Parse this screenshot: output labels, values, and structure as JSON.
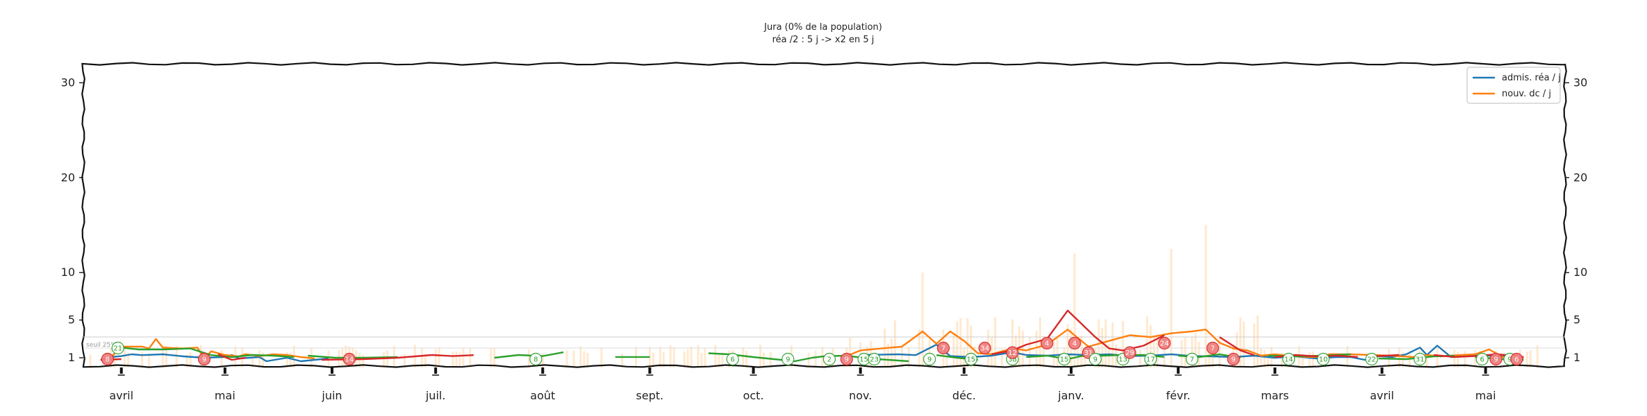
{
  "chart_data": {
    "type": "line",
    "title": "Jura (0% de la population)",
    "subtitle": "réa /2 : 5 j -> x2 en 5 j",
    "y_ticks": [
      "1",
      "5",
      "10",
      "20",
      "30"
    ],
    "y_tick_values": [
      1,
      5,
      10,
      20,
      30
    ],
    "ylim": [
      0,
      32
    ],
    "months": [
      "avril",
      "mai",
      "juin",
      "juil.",
      "août",
      "sept.",
      "oct.",
      "nov.",
      "déc.",
      "janv.",
      "févr.",
      "mars",
      "avril",
      "mai"
    ],
    "month_index": [
      0,
      30,
      61,
      91,
      122,
      153,
      183,
      214,
      244,
      275,
      306,
      334,
      365,
      395
    ],
    "x_range_days": [
      -11,
      418
    ],
    "note_label": "seuil 25%",
    "legend_position": "top-right",
    "grid": false,
    "series": [
      {
        "name": "admis. réa / j",
        "color": "#1f77b4",
        "points": [
          [
            -6,
            0.2
          ],
          [
            -3,
            0.6
          ],
          [
            0,
            1.2
          ],
          [
            3,
            1.0
          ],
          [
            6,
            1.3
          ],
          [
            12,
            1.0
          ],
          [
            18,
            0.7
          ],
          [
            24,
            0.5
          ],
          [
            30,
            1.1
          ],
          [
            32,
            0.9
          ],
          [
            34,
            0.4
          ],
          [
            40,
            0.6
          ],
          [
            42,
            0.0
          ],
          [
            48,
            0.5
          ],
          [
            52,
            0.0
          ],
          [
            60,
            0.4
          ],
          [
            95,
            null
          ],
          [
            214,
            0.9
          ],
          [
            225,
            1.0
          ],
          [
            230,
            1.3
          ],
          [
            236,
            2.4
          ],
          [
            240,
            1.2
          ],
          [
            246,
            0.6
          ],
          [
            252,
            0.8
          ],
          [
            258,
            1.6
          ],
          [
            262,
            0.9
          ],
          [
            268,
            0.8
          ],
          [
            274,
            1.0
          ],
          [
            280,
            1.3
          ],
          [
            286,
            1.0
          ],
          [
            292,
            1.2
          ],
          [
            298,
            0.8
          ],
          [
            304,
            1.0
          ],
          [
            310,
            1.2
          ],
          [
            316,
            0.7
          ],
          [
            322,
            0.6
          ],
          [
            328,
            0.8
          ],
          [
            334,
            0.5
          ],
          [
            340,
            0.7
          ],
          [
            346,
            0.4
          ],
          [
            352,
            0.6
          ],
          [
            356,
            0.6
          ],
          [
            360,
            0.2
          ],
          [
            364,
            1.2
          ],
          [
            368,
            0.6
          ],
          [
            372,
            1.0
          ],
          [
            376,
            2.1
          ],
          [
            378,
            0.9
          ],
          [
            381,
            2.3
          ],
          [
            385,
            0.6
          ],
          [
            392,
            0.8
          ],
          [
            398,
            0.8
          ],
          [
            404,
            0.6
          ],
          [
            406,
            0.5
          ]
        ]
      },
      {
        "name": "nouv. dc / j",
        "color": "#ff7f0e",
        "points": [
          [
            -3,
            0.6
          ],
          [
            0,
            2.2
          ],
          [
            6,
            2.2
          ],
          [
            8,
            2.0
          ],
          [
            10,
            3.0
          ],
          [
            12,
            2.1
          ],
          [
            18,
            2.0
          ],
          [
            22,
            2.1
          ],
          [
            24,
            0.4
          ],
          [
            26,
            1.7
          ],
          [
            30,
            0.9
          ],
          [
            34,
            0.7
          ],
          [
            36,
            1.4
          ],
          [
            40,
            1.2
          ],
          [
            44,
            1.0
          ],
          [
            48,
            0.9
          ],
          [
            52,
            0.6
          ],
          [
            56,
            0.4
          ],
          [
            200,
            null
          ],
          [
            210,
            1.2
          ],
          [
            214,
            1.8
          ],
          [
            220,
            2.0
          ],
          [
            226,
            2.2
          ],
          [
            232,
            3.8
          ],
          [
            236,
            2.5
          ],
          [
            240,
            3.8
          ],
          [
            244,
            2.8
          ],
          [
            248,
            1.5
          ],
          [
            252,
            1.4
          ],
          [
            258,
            2.0
          ],
          [
            262,
            1.8
          ],
          [
            268,
            2.4
          ],
          [
            274,
            4.0
          ],
          [
            280,
            2.2
          ],
          [
            286,
            2.8
          ],
          [
            292,
            3.4
          ],
          [
            298,
            3.2
          ],
          [
            304,
            3.6
          ],
          [
            310,
            3.8
          ],
          [
            314,
            4.0
          ],
          [
            318,
            2.6
          ],
          [
            322,
            2.0
          ],
          [
            326,
            1.8
          ],
          [
            330,
            0.8
          ],
          [
            334,
            1.0
          ],
          [
            340,
            0.7
          ],
          [
            346,
            0.6
          ],
          [
            350,
            1.4
          ],
          [
            356,
            1.0
          ],
          [
            362,
            0.9
          ],
          [
            368,
            0.8
          ],
          [
            374,
            1.1
          ],
          [
            378,
            0.9
          ],
          [
            382,
            0.7
          ],
          [
            388,
            0.9
          ],
          [
            392,
            1.0
          ],
          [
            396,
            1.9
          ],
          [
            400,
            0.6
          ],
          [
            406,
            0.5
          ]
        ]
      },
      {
        "name": "",
        "color": "#2ca02c",
        "segment": "decreasing",
        "points": [
          [
            0,
            2.1
          ],
          [
            5,
            1.9
          ],
          [
            12,
            1.9
          ],
          [
            20,
            2.0
          ],
          [
            26,
            1.3
          ],
          [
            32,
            0.6
          ],
          [
            38,
            0.9
          ],
          [
            44,
            0.8
          ],
          [
            50,
            0.6
          ],
          [
            54,
            null
          ],
          [
            54,
            0.8
          ],
          [
            62,
            0.5
          ],
          [
            70,
            0.5
          ],
          [
            80,
            0.6
          ],
          [
            94,
            null
          ],
          [
            108,
            0.5
          ],
          [
            115,
            0.9
          ],
          [
            122,
            1.2
          ],
          [
            128,
            1.6
          ],
          [
            134,
            null
          ],
          [
            143,
            1.1
          ],
          [
            153,
            1.1
          ],
          [
            160,
            null
          ],
          [
            170,
            1.5
          ],
          [
            176,
            1.0
          ],
          [
            183,
            0.6
          ],
          [
            189,
            0.3
          ],
          [
            195,
            0.0
          ],
          [
            200,
            0.5
          ],
          [
            204,
            1.2
          ],
          [
            210,
            0.8
          ],
          [
            216,
            0.4
          ],
          [
            222,
            0.2
          ],
          [
            228,
            0.0
          ],
          [
            234,
            null
          ],
          [
            236,
            1.3
          ],
          [
            242,
            0.5
          ],
          [
            248,
            0.2
          ],
          [
            252,
            null
          ],
          [
            262,
            0.6
          ],
          [
            268,
            0.8
          ],
          [
            274,
            0.3
          ],
          [
            278,
            1.2
          ],
          [
            284,
            0.8
          ],
          [
            290,
            0.9
          ],
          [
            296,
            0.9
          ],
          [
            302,
            1.1
          ],
          [
            306,
            null
          ],
          [
            306,
            0.8
          ],
          [
            312,
            0.6
          ],
          [
            318,
            1.0
          ],
          [
            324,
            0.5
          ],
          [
            332,
            null
          ],
          [
            332,
            0.8
          ],
          [
            340,
            0.7
          ],
          [
            348,
            0.8
          ],
          [
            356,
            1.0
          ],
          [
            364,
            null
          ],
          [
            364,
            0.4
          ],
          [
            372,
            0.3
          ],
          [
            380,
            0.7
          ],
          [
            386,
            0.8
          ],
          [
            392,
            null
          ],
          [
            392,
            0.6
          ],
          [
            400,
            0.3
          ],
          [
            406,
            0.2
          ]
        ]
      },
      {
        "name": "",
        "color": "#d62728",
        "segment": "increasing",
        "points": [
          [
            -6,
            0.2
          ],
          [
            0,
            0.3
          ],
          [
            6,
            null
          ],
          [
            28,
            1.0
          ],
          [
            32,
            0.2
          ],
          [
            36,
            0.5
          ],
          [
            40,
            null
          ],
          [
            58,
            0.2
          ],
          [
            70,
            0.3
          ],
          [
            80,
            0.5
          ],
          [
            90,
            0.9
          ],
          [
            96,
            1.2
          ],
          [
            102,
            1.3
          ],
          [
            108,
            null
          ],
          [
            252,
            1.0
          ],
          [
            258,
            1.8
          ],
          [
            262,
            2.4
          ],
          [
            268,
            3.0
          ],
          [
            274,
            6.0
          ],
          [
            278,
            4.6
          ],
          [
            282,
            3.2
          ],
          [
            286,
            2.0
          ],
          [
            290,
            1.8
          ],
          [
            296,
            2.3
          ],
          [
            302,
            3.4
          ],
          [
            306,
            null
          ],
          [
            318,
            3.2
          ],
          [
            324,
            1.8
          ],
          [
            328,
            1.3
          ],
          [
            334,
            null
          ],
          [
            334,
            0.6
          ],
          [
            340,
            0.9
          ],
          [
            346,
            0.7
          ],
          [
            352,
            0.8
          ],
          [
            358,
            1.1
          ],
          [
            362,
            null
          ],
          [
            362,
            0.7
          ],
          [
            370,
            0.9
          ],
          [
            376,
            null
          ],
          [
            380,
            0.9
          ],
          [
            386,
            1.1
          ],
          [
            392,
            1.2
          ],
          [
            398,
            1.0
          ],
          [
            404,
            0.8
          ],
          [
            406,
            0.6
          ]
        ]
      }
    ],
    "annotations": [
      {
        "x": -4,
        "y": 0.0,
        "text": "8",
        "kind": "red"
      },
      {
        "x": -1,
        "y": 1.0,
        "text": "21",
        "kind": "green"
      },
      {
        "x": 24,
        "y": 0.0,
        "text": "9",
        "kind": "red"
      },
      {
        "x": 66,
        "y": 0.0,
        "text": "14",
        "kind": "red"
      },
      {
        "x": 120,
        "y": 0.0,
        "text": "8",
        "kind": "green"
      },
      {
        "x": 177,
        "y": 0.0,
        "text": "6",
        "kind": "green"
      },
      {
        "x": 193,
        "y": 0.0,
        "text": "9",
        "kind": "green"
      },
      {
        "x": 205,
        "y": 0.0,
        "text": "2",
        "kind": "green"
      },
      {
        "x": 210,
        "y": 0.0,
        "text": "9",
        "kind": "red"
      },
      {
        "x": 215,
        "y": 0.0,
        "text": "15",
        "kind": "green"
      },
      {
        "x": 218,
        "y": 0.0,
        "text": "23",
        "kind": "green"
      },
      {
        "x": 234,
        "y": 0.0,
        "text": "9",
        "kind": "green"
      },
      {
        "x": 238,
        "y": 1.0,
        "text": "7",
        "kind": "red"
      },
      {
        "x": 246,
        "y": 0.0,
        "text": "15",
        "kind": "green"
      },
      {
        "x": 250,
        "y": 1.0,
        "text": "34",
        "kind": "red"
      },
      {
        "x": 258,
        "y": 0.0,
        "text": "38",
        "kind": "green"
      },
      {
        "x": 258,
        "y": 2.0,
        "text": "12",
        "kind": "red"
      },
      {
        "x": 268,
        "y": 3.0,
        "text": "4",
        "kind": "red"
      },
      {
        "x": 273,
        "y": 0.0,
        "text": "15",
        "kind": "green"
      },
      {
        "x": 276,
        "y": 3.0,
        "text": "4",
        "kind": "red"
      },
      {
        "x": 280,
        "y": 2.0,
        "text": "31",
        "kind": "red"
      },
      {
        "x": 282,
        "y": 0.0,
        "text": "9",
        "kind": "green"
      },
      {
        "x": 290,
        "y": 0.0,
        "text": "13",
        "kind": "green"
      },
      {
        "x": 292,
        "y": 2.0,
        "text": "29",
        "kind": "red"
      },
      {
        "x": 298,
        "y": 0.0,
        "text": "17",
        "kind": "green"
      },
      {
        "x": 302,
        "y": 3.0,
        "text": "24",
        "kind": "red"
      },
      {
        "x": 310,
        "y": 0.0,
        "text": "7",
        "kind": "green"
      },
      {
        "x": 316,
        "y": 1.0,
        "text": "7",
        "kind": "red"
      },
      {
        "x": 322,
        "y": 0.0,
        "text": "9",
        "kind": "red"
      },
      {
        "x": 338,
        "y": 0.0,
        "text": "14",
        "kind": "green"
      },
      {
        "x": 348,
        "y": 0.0,
        "text": "10",
        "kind": "green"
      },
      {
        "x": 362,
        "y": 0.0,
        "text": "22",
        "kind": "green"
      },
      {
        "x": 376,
        "y": 0.0,
        "text": "31",
        "kind": "green"
      },
      {
        "x": 394,
        "y": 0.0,
        "text": "6",
        "kind": "green"
      },
      {
        "x": 398,
        "y": 0.0,
        "text": "9",
        "kind": "red"
      },
      {
        "x": 402,
        "y": 0.0,
        "text": "9",
        "kind": "green"
      },
      {
        "x": 404,
        "y": 0.0,
        "text": "6",
        "kind": "red"
      }
    ]
  }
}
